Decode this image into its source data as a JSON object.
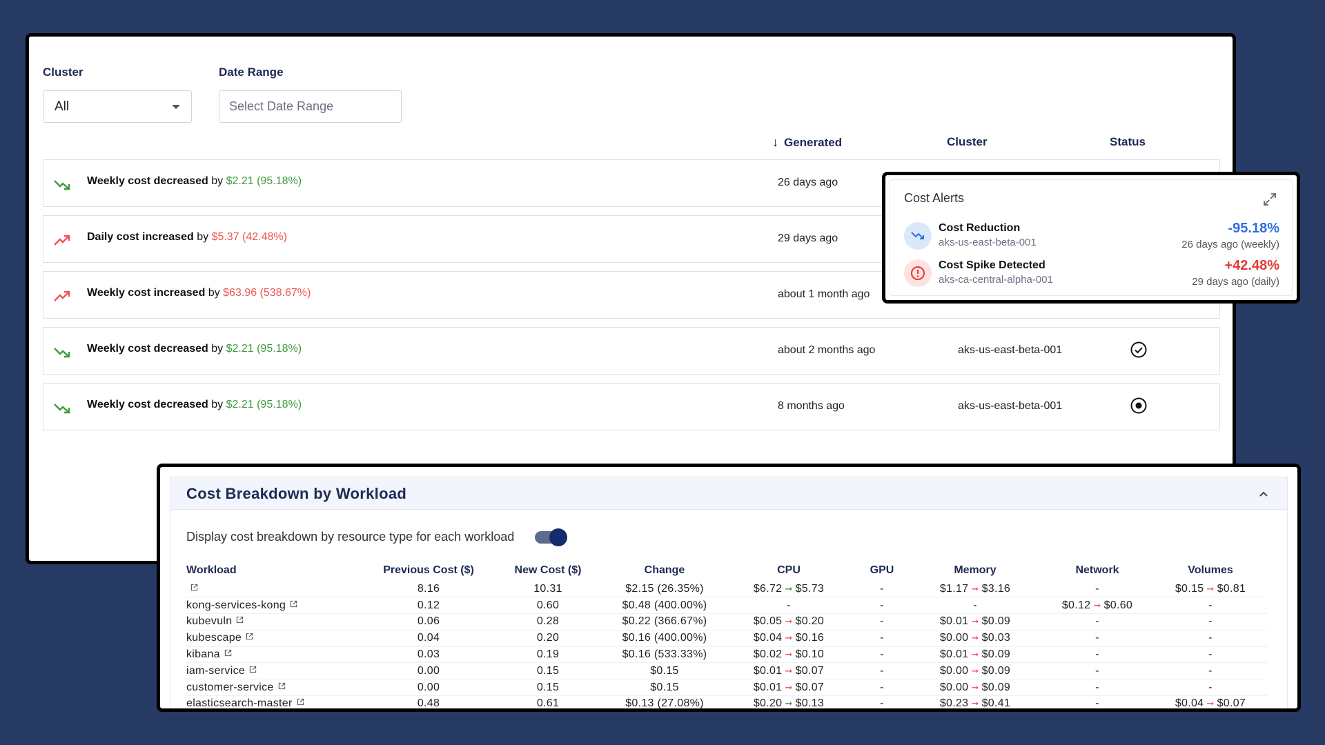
{
  "filters": {
    "cluster_label": "Cluster",
    "cluster_value": "All",
    "date_label": "Date Range",
    "date_placeholder": "Select Date Range"
  },
  "columns": {
    "generated": "Generated",
    "cluster": "Cluster",
    "status": "Status"
  },
  "alerts": [
    {
      "direction": "down",
      "text": "Weekly cost decreased",
      "by": " by ",
      "amount": "$2.21 (95.18%)",
      "generated": "26 days ago",
      "cluster": "",
      "status": ""
    },
    {
      "direction": "up",
      "text": "Daily cost increased",
      "by": " by ",
      "amount": "$5.37 (42.48%)",
      "generated": "29 days ago",
      "cluster": "",
      "status": ""
    },
    {
      "direction": "up",
      "text": "Weekly cost increased",
      "by": " by ",
      "amount": "$63.96 (538.67%)",
      "generated": "about 1 month ago",
      "cluster": "",
      "status": ""
    },
    {
      "direction": "down",
      "text": "Weekly cost decreased",
      "by": " by ",
      "amount": "$2.21 (95.18%)",
      "generated": "about 2 months ago",
      "cluster": "aks-us-east-beta-001",
      "status": "check-circle"
    },
    {
      "direction": "down",
      "text": "Weekly cost decreased",
      "by": " by ",
      "amount": "$2.21 (95.18%)",
      "generated": "8 months ago",
      "cluster": "aks-us-east-beta-001",
      "status": "dot-circle"
    }
  ],
  "cost_alerts": {
    "title": "Cost Alerts",
    "items": [
      {
        "title": "Cost Reduction",
        "cluster": "aks-us-east-beta-001",
        "pct": "-95.18%",
        "time": "26 days ago (weekly)",
        "color": "#2f6fe0"
      },
      {
        "title": "Cost Spike Detected",
        "cluster": "aks-ca-central-alpha-001",
        "pct": "+42.48%",
        "time": "29 days ago (daily)",
        "color": "#e53935"
      }
    ]
  },
  "breakdown": {
    "title": "Cost Breakdown by Workload",
    "toggle_label": "Display cost breakdown by resource type for each workload",
    "toggle_on": true,
    "headers": [
      "Workload",
      "Previous Cost ($)",
      "New Cost ($)",
      "Change",
      "CPU",
      "GPU",
      "Memory",
      "Network",
      "Volumes"
    ],
    "rows": [
      {
        "workload": "",
        "prev": "8.16",
        "new": "10.31",
        "change": "$2.15 (26.35%)",
        "cpu": [
          "$6.72",
          "$5.73",
          "dn"
        ],
        "gpu": "-",
        "mem": [
          "$1.17",
          "$3.16",
          "up"
        ],
        "net": "-",
        "vol": [
          "$0.15",
          "$0.81",
          "up"
        ]
      },
      {
        "workload": "kong-services-kong",
        "prev": "0.12",
        "new": "0.60",
        "change": "$0.48 (400.00%)",
        "cpu": "-",
        "gpu": "-",
        "mem": "-",
        "net": [
          "$0.12",
          "$0.60",
          "up"
        ],
        "vol": "-"
      },
      {
        "workload": "kubevuln",
        "prev": "0.06",
        "new": "0.28",
        "change": "$0.22 (366.67%)",
        "cpu": [
          "$0.05",
          "$0.20",
          "up"
        ],
        "gpu": "-",
        "mem": [
          "$0.01",
          "$0.09",
          "up"
        ],
        "net": "-",
        "vol": "-"
      },
      {
        "workload": "kubescape",
        "prev": "0.04",
        "new": "0.20",
        "change": "$0.16 (400.00%)",
        "cpu": [
          "$0.04",
          "$0.16",
          "up"
        ],
        "gpu": "-",
        "mem": [
          "$0.00",
          "$0.03",
          "up"
        ],
        "net": "-",
        "vol": "-"
      },
      {
        "workload": "kibana",
        "prev": "0.03",
        "new": "0.19",
        "change": "$0.16 (533.33%)",
        "cpu": [
          "$0.02",
          "$0.10",
          "up"
        ],
        "gpu": "-",
        "mem": [
          "$0.01",
          "$0.09",
          "up"
        ],
        "net": "-",
        "vol": "-"
      },
      {
        "workload": "iam-service",
        "prev": "0.00",
        "new": "0.15",
        "change": "$0.15",
        "cpu": [
          "$0.01",
          "$0.07",
          "up"
        ],
        "gpu": "-",
        "mem": [
          "$0.00",
          "$0.09",
          "up"
        ],
        "net": "-",
        "vol": "-"
      },
      {
        "workload": "customer-service",
        "prev": "0.00",
        "new": "0.15",
        "change": "$0.15",
        "cpu": [
          "$0.01",
          "$0.07",
          "up"
        ],
        "gpu": "-",
        "mem": [
          "$0.00",
          "$0.09",
          "up"
        ],
        "net": "-",
        "vol": "-"
      },
      {
        "workload": "elasticsearch-master",
        "prev": "0.48",
        "new": "0.61",
        "change": "$0.13 (27.08%)",
        "cpu": [
          "$0.20",
          "$0.13",
          "dn"
        ],
        "gpu": "-",
        "mem": [
          "$0.23",
          "$0.41",
          "up"
        ],
        "net": "-",
        "vol": [
          "$0.04",
          "$0.07",
          "up"
        ]
      }
    ]
  }
}
